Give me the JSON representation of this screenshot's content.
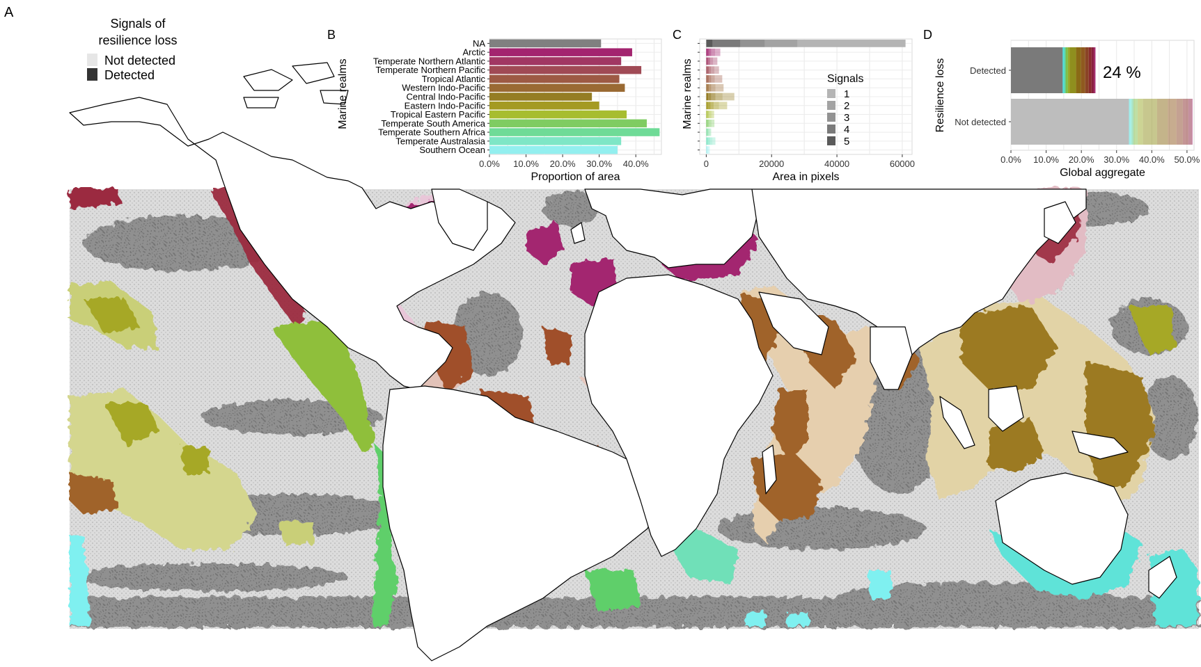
{
  "figure": {
    "panel_labels": [
      "A",
      "B",
      "C",
      "D"
    ],
    "legend_a": {
      "title_line1": "Signals of",
      "title_line2": "resilience loss",
      "items": [
        {
          "label": "Not detected",
          "color": "#e6e6e6"
        },
        {
          "label": "Detected",
          "color": "#333333"
        }
      ]
    },
    "map_colors": {
      "background_not_detected": "#d9d9d9",
      "detected_gray": "#808080",
      "land": "#ffffff",
      "arctic": "#a3256f",
      "temperate_northern_atlantic": "#a3256f",
      "temperate_northern_pacific": "#9b2a3f",
      "tropical_atlantic": "#a0502a",
      "western_indo_pacific": "#a0642a",
      "central_indo_pacific": "#9c7a20",
      "eastern_indo_pacific": "#a6a828",
      "tropical_eastern_pacific": "#8fbf3a",
      "temperate_south_america": "#5fcf6a",
      "temperate_southern_africa": "#6fe0b8",
      "temperate_australasia": "#5fe3d8",
      "southern_ocean": "#7ff0f0"
    }
  },
  "chart_data": [
    {
      "panel": "B",
      "type": "bar",
      "orientation": "horizontal",
      "ylabel": "Marine realms",
      "xlabel": "Proportion of area",
      "xlim": [
        0,
        0.47
      ],
      "xticks": [
        0,
        0.1,
        0.2,
        0.3,
        0.4
      ],
      "xtick_labels": [
        "0.0%",
        "10.0%",
        "20.0%",
        "30.0%",
        "40.0%"
      ],
      "grid": true,
      "categories": [
        "NA",
        "Arctic",
        "Temperate Northern Atlantic",
        "Temperate Northern Pacific",
        "Tropical Atlantic",
        "Western Indo-Pacific",
        "Central Indo-Pacific",
        "Eastern Indo-Pacific",
        "Tropical Eastern Pacific",
        "Temperate South America",
        "Temperate Southern Africa",
        "Temperate Australasia",
        "Southern Ocean"
      ],
      "values": [
        0.305,
        0.39,
        0.36,
        0.415,
        0.355,
        0.37,
        0.28,
        0.3,
        0.375,
        0.43,
        0.465,
        0.36,
        0.35
      ],
      "colors": [
        "#808080",
        "#a3246f",
        "#a13763",
        "#a04a55",
        "#9d5a44",
        "#9a6a33",
        "#957d24",
        "#a49a22",
        "#a7bd30",
        "#7fcc62",
        "#6fdb97",
        "#7ee6c6",
        "#93efef"
      ]
    },
    {
      "panel": "C",
      "type": "bar",
      "orientation": "horizontal",
      "stacked": true,
      "ylabel": "Marine realms",
      "xlabel": "Area in pixels",
      "xlim": [
        -2000,
        63000
      ],
      "xticks": [
        0,
        20000,
        40000,
        60000
      ],
      "xtick_labels": [
        "0",
        "20000",
        "40000",
        "60000"
      ],
      "grid": true,
      "legend": {
        "title": "Signals",
        "entries": [
          "1",
          "2",
          "3",
          "4",
          "5"
        ],
        "position": "right"
      },
      "series_colors": [
        "#b4b4b4",
        "#a3a3a3",
        "#929292",
        "#7a7a7a",
        "#5a5a5a"
      ],
      "stack_order_from_left": [
        "5",
        "4",
        "3",
        "2",
        "1"
      ],
      "rows": [
        {
          "realm": "NA",
          "segments": [
            2000,
            8500,
            7500,
            10000,
            33000
          ],
          "color": "#808080"
        },
        {
          "realm": "Arctic",
          "segments": [
            400,
            500,
            600,
            1200,
            1600
          ],
          "color": "#a3246f"
        },
        {
          "realm": "Temperate Northern Atlantic",
          "segments": [
            300,
            400,
            500,
            900,
            1300
          ],
          "color": "#a13763"
        },
        {
          "realm": "Temperate Northern Pacific",
          "segments": [
            300,
            500,
            600,
            1100,
            1400
          ],
          "color": "#a04a55"
        },
        {
          "realm": "Tropical Atlantic",
          "segments": [
            300,
            500,
            700,
            1100,
            2300
          ],
          "color": "#9d5a44"
        },
        {
          "realm": "Western Indo-Pacific",
          "segments": [
            300,
            500,
            700,
            1300,
            2500
          ],
          "color": "#9a6a33"
        },
        {
          "realm": "Central Indo-Pacific",
          "segments": [
            600,
            900,
            1300,
            2200,
            3600
          ],
          "color": "#957d24"
        },
        {
          "realm": "Eastern Indo-Pacific",
          "segments": [
            500,
            800,
            1000,
            1600,
            2500
          ],
          "color": "#a49a22"
        },
        {
          "realm": "Tropical Eastern Pacific",
          "segments": [
            200,
            300,
            400,
            700,
            800
          ],
          "color": "#a7bd30"
        },
        {
          "realm": "Temperate South America",
          "segments": [
            200,
            300,
            400,
            700,
            900
          ],
          "color": "#7fcc62"
        },
        {
          "realm": "Temperate Southern Africa",
          "segments": [
            100,
            200,
            300,
            400,
            500
          ],
          "color": "#6fdb97"
        },
        {
          "realm": "Temperate Australasia",
          "segments": [
            300,
            400,
            500,
            700,
            900
          ],
          "color": "#7ee6c6"
        },
        {
          "realm": "Southern Ocean",
          "segments": [
            100,
            100,
            200,
            300,
            400
          ],
          "color": "#93efef"
        }
      ]
    },
    {
      "panel": "D",
      "type": "bar",
      "orientation": "horizontal",
      "stacked": true,
      "ylabel": "Resilience loss",
      "xlabel": "Global aggregate",
      "xlim": [
        0,
        0.52
      ],
      "xticks": [
        0,
        0.1,
        0.2,
        0.3,
        0.4,
        0.5
      ],
      "xtick_labels": [
        "0.0%",
        "10.0%",
        "20.0%",
        "30.0%",
        "40.0%",
        "50.0%"
      ],
      "grid": true,
      "categories": [
        "Detected",
        "Not detected"
      ],
      "annotation": "24 %",
      "series": [
        {
          "name": "NA",
          "color": "#7a7a7a",
          "values": [
            0.147,
            0.335
          ]
        },
        {
          "name": "Southern Ocean",
          "color": "#3fd9d9",
          "values": [
            0.003,
            0.004
          ]
        },
        {
          "name": "Temperate Australasia",
          "color": "#56e0c8",
          "values": [
            0.003,
            0.004
          ]
        },
        {
          "name": "Temperate Southern Africa",
          "color": "#57c785",
          "values": [
            0.003,
            0.005
          ]
        },
        {
          "name": "Temperate South America",
          "color": "#7fbf4a",
          "values": [
            0.006,
            0.012
          ]
        },
        {
          "name": "Tropical Eastern Pacific",
          "color": "#9aaa2a",
          "values": [
            0.005,
            0.015
          ]
        },
        {
          "name": "Eastern Indo-Pacific",
          "color": "#8f8f1e",
          "values": [
            0.018,
            0.04
          ]
        },
        {
          "name": "Central Indo-Pacific",
          "color": "#8a6a16",
          "values": [
            0.014,
            0.03
          ]
        },
        {
          "name": "Western Indo-Pacific",
          "color": "#8f5a20",
          "values": [
            0.012,
            0.025
          ]
        },
        {
          "name": "Tropical Atlantic",
          "color": "#8a4426",
          "values": [
            0.01,
            0.018
          ]
        },
        {
          "name": "Temperate Northern Pacific",
          "color": "#8a2c2c",
          "values": [
            0.008,
            0.016
          ]
        },
        {
          "name": "Temperate Northern Atlantic",
          "color": "#8a1f40",
          "values": [
            0.007,
            0.01
          ]
        },
        {
          "name": "Arctic",
          "color": "#a0246a",
          "values": [
            0.004,
            0.002
          ]
        }
      ]
    }
  ]
}
